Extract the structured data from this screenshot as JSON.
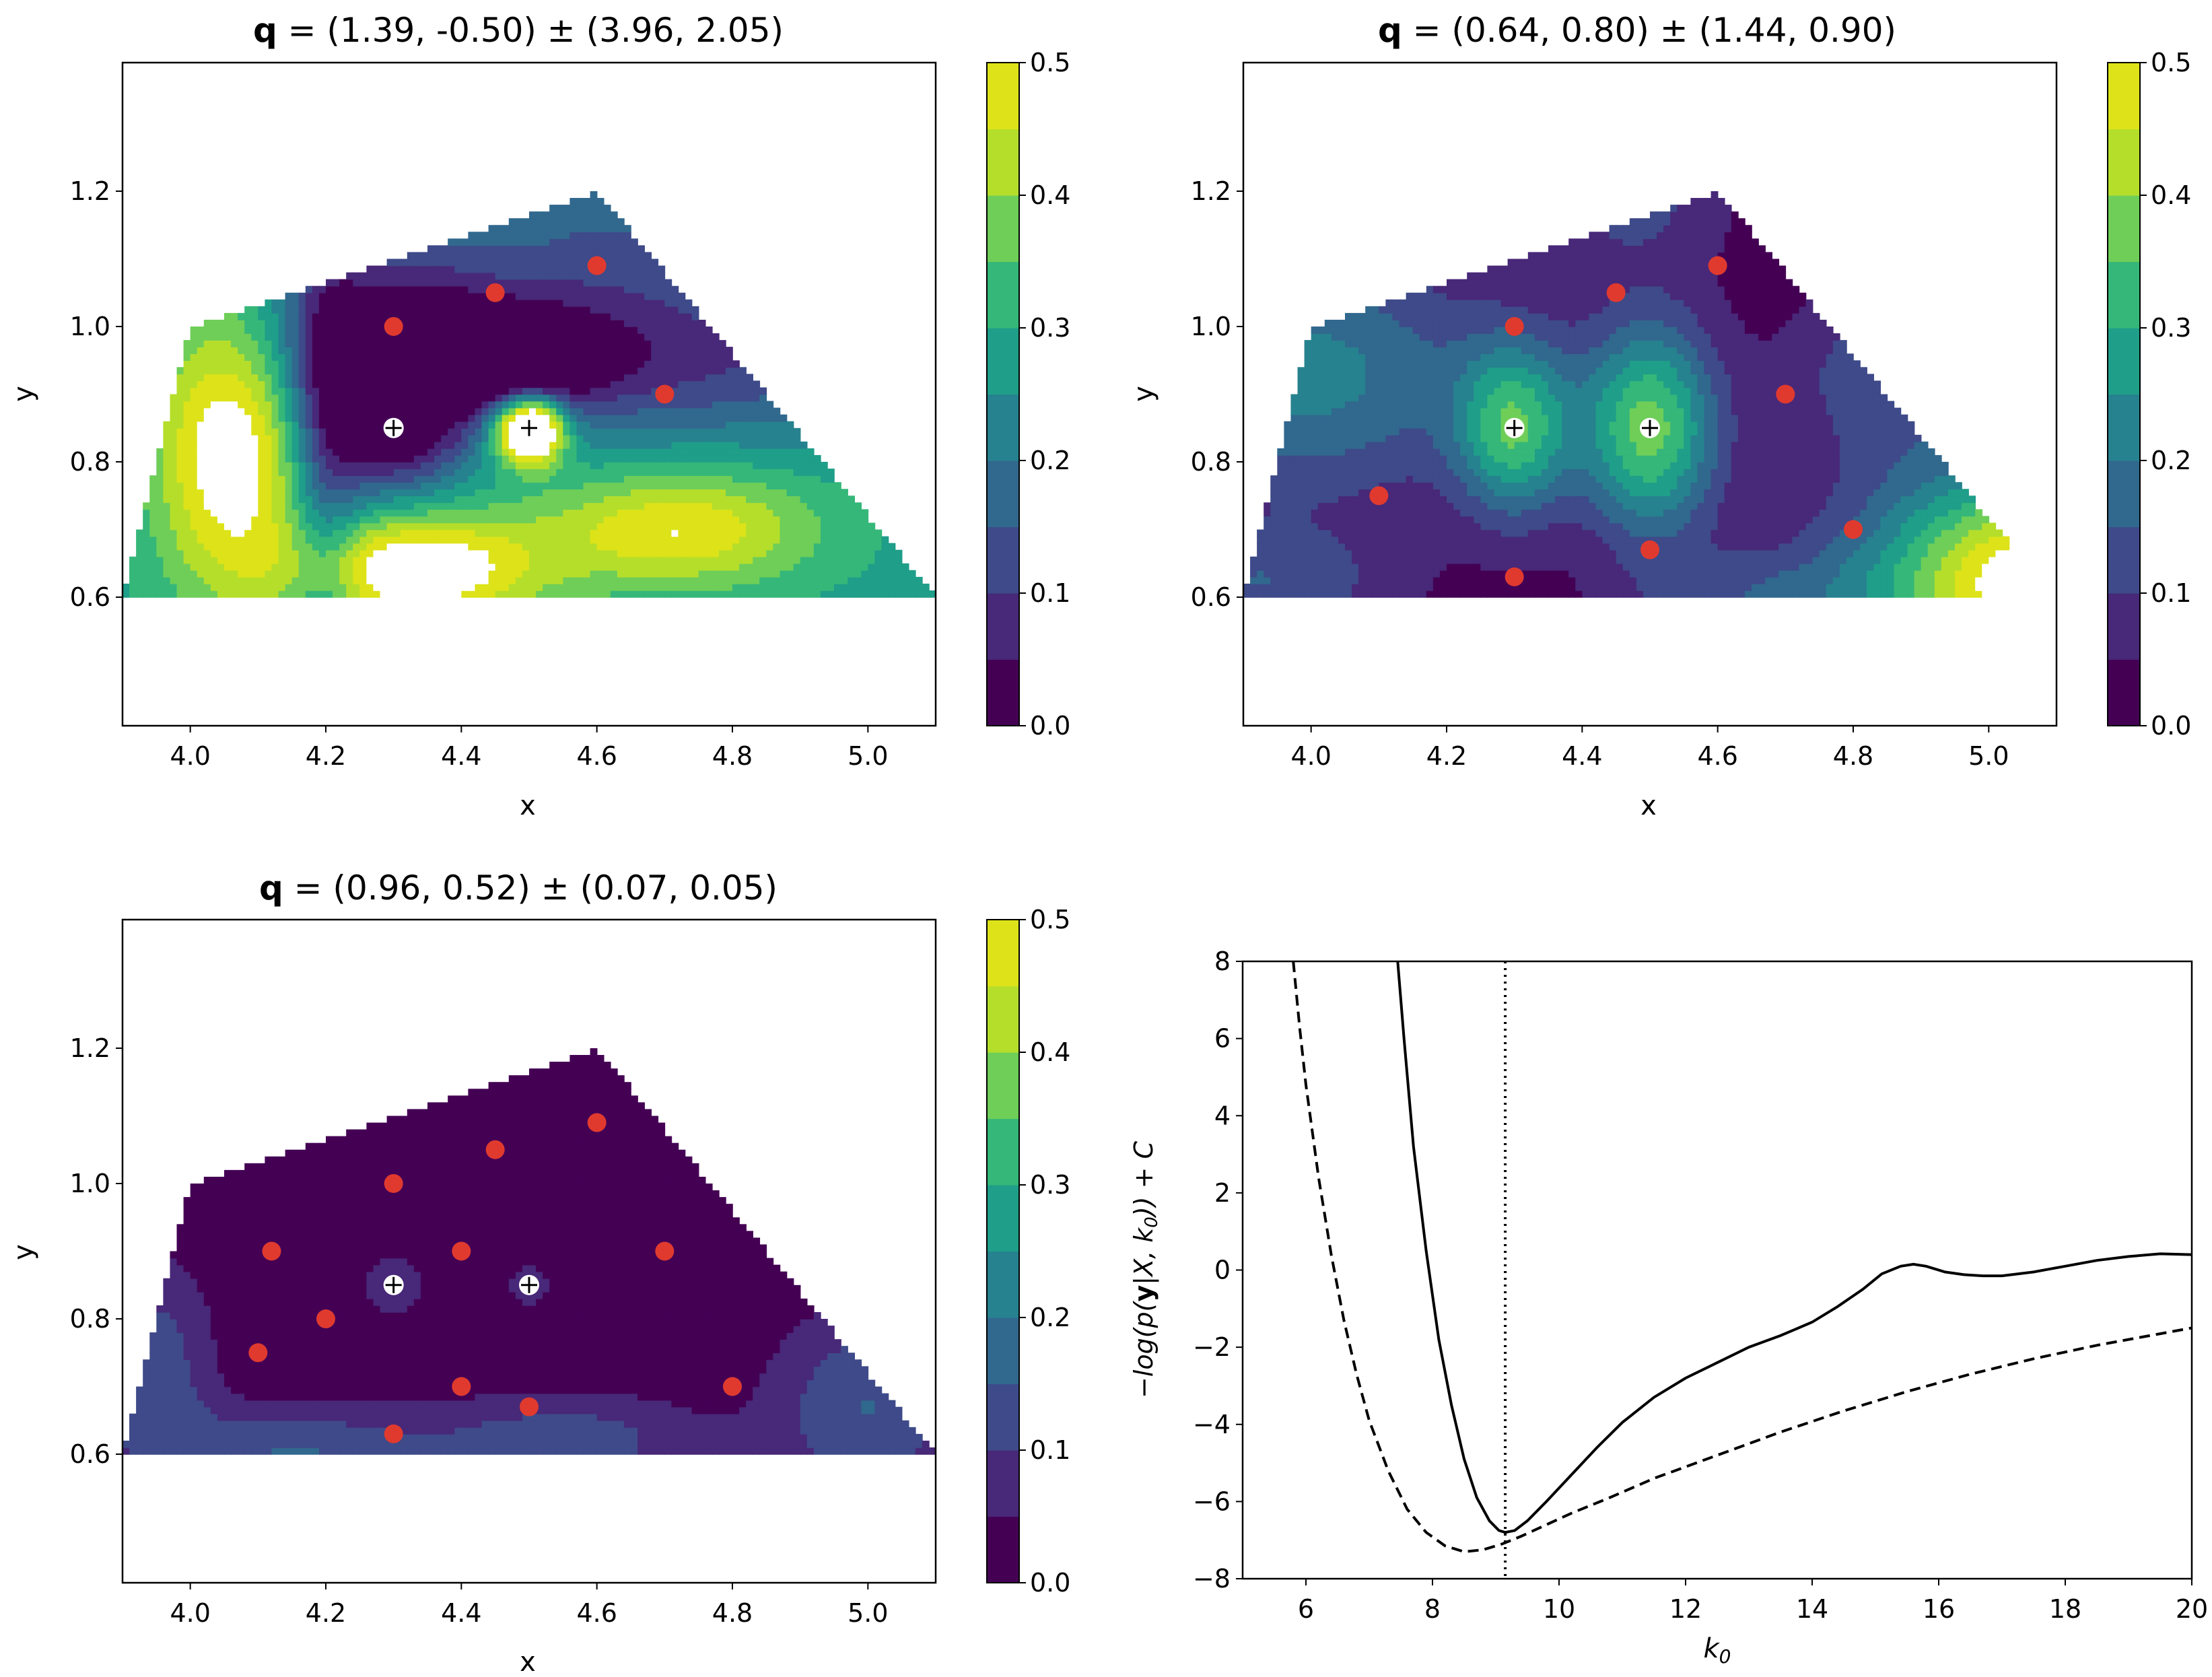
{
  "figure_title": "",
  "chart_data": [
    {
      "type": "contourf",
      "panel": "top-left",
      "title_prefix": "q",
      "title_rest": " = (1.39, -0.50) ± (3.96, 2.05)",
      "xlabel": "x",
      "ylabel": "y",
      "xlim": [
        3.9,
        5.1
      ],
      "ylim": [
        0.41,
        1.39
      ],
      "xticks": [
        "4.0",
        "4.2",
        "4.4",
        "4.6",
        "4.8",
        "5.0"
      ],
      "yticks": [
        "0.6",
        "0.8",
        "1.0",
        "1.2"
      ],
      "colorbar": {
        "min": 0.0,
        "max": 0.5,
        "levels": 10,
        "ticks": [
          "0.0",
          "0.1",
          "0.2",
          "0.3",
          "0.4",
          "0.5"
        ]
      },
      "region_polygon": [
        [
          4.0,
          1.0
        ],
        [
          4.6,
          1.2
        ],
        [
          5.1,
          0.6
        ],
        [
          3.9,
          0.6
        ],
        [
          4.0,
          1.0
        ]
      ],
      "field": {
        "base": 0.28,
        "terms": [
          [
            4.3,
            0.85,
            0.07,
            0.07,
            -0.25
          ],
          [
            4.5,
            0.85,
            0.035,
            0.035,
            0.55
          ],
          [
            4.48,
            0.95,
            0.09,
            0.05,
            -0.24
          ],
          [
            4.06,
            0.82,
            0.08,
            0.15,
            0.28
          ],
          [
            4.33,
            0.64,
            0.13,
            0.06,
            0.3
          ],
          [
            4.72,
            0.7,
            0.14,
            0.06,
            0.22
          ],
          [
            4.3,
            1.0,
            0.12,
            0.1,
            -0.22
          ],
          [
            4.2,
            0.8,
            0.04,
            0.25,
            -0.15
          ],
          [
            4.7,
            0.95,
            0.3,
            0.08,
            -0.18
          ],
          [
            4.62,
            1.12,
            0.15,
            0.1,
            -0.12
          ]
        ]
      },
      "observed_points": [
        [
          4.3,
          1.0
        ],
        [
          4.45,
          1.05
        ],
        [
          4.6,
          1.09
        ],
        [
          4.7,
          0.9
        ]
      ],
      "query_points": [
        [
          4.3,
          0.85
        ],
        [
          4.5,
          0.85
        ]
      ]
    },
    {
      "type": "contourf",
      "panel": "top-right",
      "title_prefix": "q",
      "title_rest": " = (0.64, 0.80) ± (1.44, 0.90)",
      "xlabel": "x",
      "ylabel": "y",
      "xlim": [
        3.9,
        5.1
      ],
      "ylim": [
        0.41,
        1.39
      ],
      "xticks": [
        "4.0",
        "4.2",
        "4.4",
        "4.6",
        "4.8",
        "5.0"
      ],
      "yticks": [
        "0.6",
        "0.8",
        "1.0",
        "1.2"
      ],
      "colorbar": {
        "min": 0.0,
        "max": 0.5,
        "levels": 10,
        "ticks": [
          "0.0",
          "0.1",
          "0.2",
          "0.3",
          "0.4",
          "0.5"
        ]
      },
      "region_polygon": [
        [
          4.0,
          1.0
        ],
        [
          4.6,
          1.2
        ],
        [
          5.08,
          0.62
        ],
        [
          5.06,
          0.6
        ],
        [
          3.9,
          0.6
        ],
        [
          4.0,
          1.0
        ]
      ],
      "field": {
        "base": 0.02,
        "terms": [
          [
            4.3,
            0.85,
            0.06,
            0.09,
            0.3
          ],
          [
            4.5,
            0.85,
            0.07,
            0.11,
            0.35
          ],
          [
            4.0,
            0.93,
            0.18,
            0.13,
            0.2
          ],
          [
            5.08,
            0.62,
            0.18,
            0.12,
            0.55
          ],
          [
            4.85,
            0.93,
            0.1,
            0.09,
            0.12
          ],
          [
            3.92,
            0.62,
            0.14,
            0.06,
            0.12
          ],
          [
            4.65,
            0.6,
            0.13,
            0.05,
            0.1
          ],
          [
            4.47,
            1.2,
            0.1,
            0.08,
            0.1
          ]
        ]
      },
      "observed_points": [
        [
          4.3,
          1.0
        ],
        [
          4.45,
          1.05
        ],
        [
          4.6,
          1.09
        ],
        [
          4.7,
          0.9
        ],
        [
          4.1,
          0.75
        ],
        [
          4.3,
          0.63
        ],
        [
          4.5,
          0.67
        ],
        [
          4.8,
          0.7
        ]
      ],
      "query_points": [
        [
          4.3,
          0.85
        ],
        [
          4.5,
          0.85
        ]
      ]
    },
    {
      "type": "contourf",
      "panel": "bottom-left",
      "title_prefix": "q",
      "title_rest": " = (0.96, 0.52) ± (0.07, 0.05)",
      "xlabel": "x",
      "ylabel": "y",
      "xlim": [
        3.9,
        5.1
      ],
      "ylim": [
        0.41,
        1.39
      ],
      "xticks": [
        "4.0",
        "4.2",
        "4.4",
        "4.6",
        "4.8",
        "5.0"
      ],
      "yticks": [
        "0.6",
        "0.8",
        "1.0",
        "1.2"
      ],
      "colorbar": {
        "min": 0.0,
        "max": 0.5,
        "levels": 10,
        "ticks": [
          "0.0",
          "0.1",
          "0.2",
          "0.3",
          "0.4",
          "0.5"
        ]
      },
      "region_polygon": [
        [
          4.0,
          1.0
        ],
        [
          4.6,
          1.2
        ],
        [
          5.1,
          0.6
        ],
        [
          3.9,
          0.6
        ],
        [
          4.0,
          1.0
        ]
      ],
      "field": {
        "base": 0.01,
        "terms": [
          [
            3.95,
            0.72,
            0.06,
            0.12,
            0.12
          ],
          [
            4.15,
            0.6,
            0.14,
            0.05,
            0.14
          ],
          [
            4.55,
            0.62,
            0.15,
            0.05,
            0.12
          ],
          [
            5.0,
            0.67,
            0.1,
            0.1,
            0.14
          ],
          [
            4.3,
            0.85,
            0.03,
            0.03,
            0.1
          ],
          [
            4.5,
            0.85,
            0.02,
            0.02,
            0.1
          ]
        ]
      },
      "observed_points": [
        [
          4.3,
          1.0
        ],
        [
          4.45,
          1.05
        ],
        [
          4.6,
          1.09
        ],
        [
          4.7,
          0.9
        ],
        [
          4.12,
          0.9
        ],
        [
          4.4,
          0.9
        ],
        [
          4.2,
          0.8
        ],
        [
          4.1,
          0.75
        ],
        [
          4.4,
          0.7
        ],
        [
          4.5,
          0.67
        ],
        [
          4.8,
          0.7
        ],
        [
          4.3,
          0.63
        ]
      ],
      "query_points": [
        [
          4.3,
          0.85
        ],
        [
          4.5,
          0.85
        ]
      ]
    },
    {
      "type": "line",
      "panel": "bottom-right",
      "title": "",
      "xlabel": "k0",
      "ylabel": "-log(p(y|X, k0)) + C",
      "xlim": [
        5,
        20
      ],
      "ylim": [
        -8,
        8
      ],
      "xticks": [
        6,
        8,
        10,
        12,
        14,
        16,
        18,
        20
      ],
      "yticks": [
        -8,
        -6,
        -4,
        -2,
        0,
        2,
        4,
        6,
        8
      ],
      "vline_x": 9.15,
      "series": [
        {
          "name": "solid",
          "style": "solid",
          "x": [
            7.45,
            7.55,
            7.7,
            7.9,
            8.1,
            8.3,
            8.5,
            8.7,
            8.9,
            9.05,
            9.15,
            9.3,
            9.5,
            9.8,
            10.2,
            10.6,
            11.0,
            11.5,
            12.0,
            12.5,
            13.0,
            13.5,
            14.0,
            14.4,
            14.8,
            15.1,
            15.4,
            15.6,
            15.8,
            16.1,
            16.4,
            16.7,
            17.0,
            17.5,
            18.0,
            18.5,
            19.0,
            19.5,
            20.0
          ],
          "y": [
            8.0,
            6.0,
            3.2,
            0.5,
            -1.8,
            -3.5,
            -4.9,
            -5.9,
            -6.5,
            -6.75,
            -6.8,
            -6.75,
            -6.5,
            -6.0,
            -5.3,
            -4.6,
            -3.95,
            -3.3,
            -2.8,
            -2.4,
            -2.0,
            -1.7,
            -1.35,
            -0.95,
            -0.5,
            -0.1,
            0.1,
            0.15,
            0.1,
            -0.05,
            -0.12,
            -0.15,
            -0.15,
            -0.05,
            0.1,
            0.25,
            0.35,
            0.42,
            0.4
          ]
        },
        {
          "name": "dashed",
          "style": "dashed",
          "x": [
            5.8,
            5.9,
            6.0,
            6.2,
            6.4,
            6.6,
            6.8,
            7.0,
            7.3,
            7.6,
            7.9,
            8.2,
            8.5,
            8.8,
            9.1,
            9.4,
            9.8,
            10.2,
            10.8,
            11.5,
            12.5,
            13.5,
            14.5,
            15.5,
            16.5,
            17.5,
            18.5,
            19.5,
            20.0
          ],
          "y": [
            8.0,
            6.3,
            4.8,
            2.4,
            0.4,
            -1.3,
            -2.7,
            -3.9,
            -5.2,
            -6.2,
            -6.8,
            -7.15,
            -7.3,
            -7.25,
            -7.1,
            -6.9,
            -6.6,
            -6.3,
            -5.9,
            -5.4,
            -4.8,
            -4.2,
            -3.65,
            -3.15,
            -2.7,
            -2.3,
            -1.95,
            -1.65,
            -1.5
          ]
        }
      ]
    }
  ]
}
